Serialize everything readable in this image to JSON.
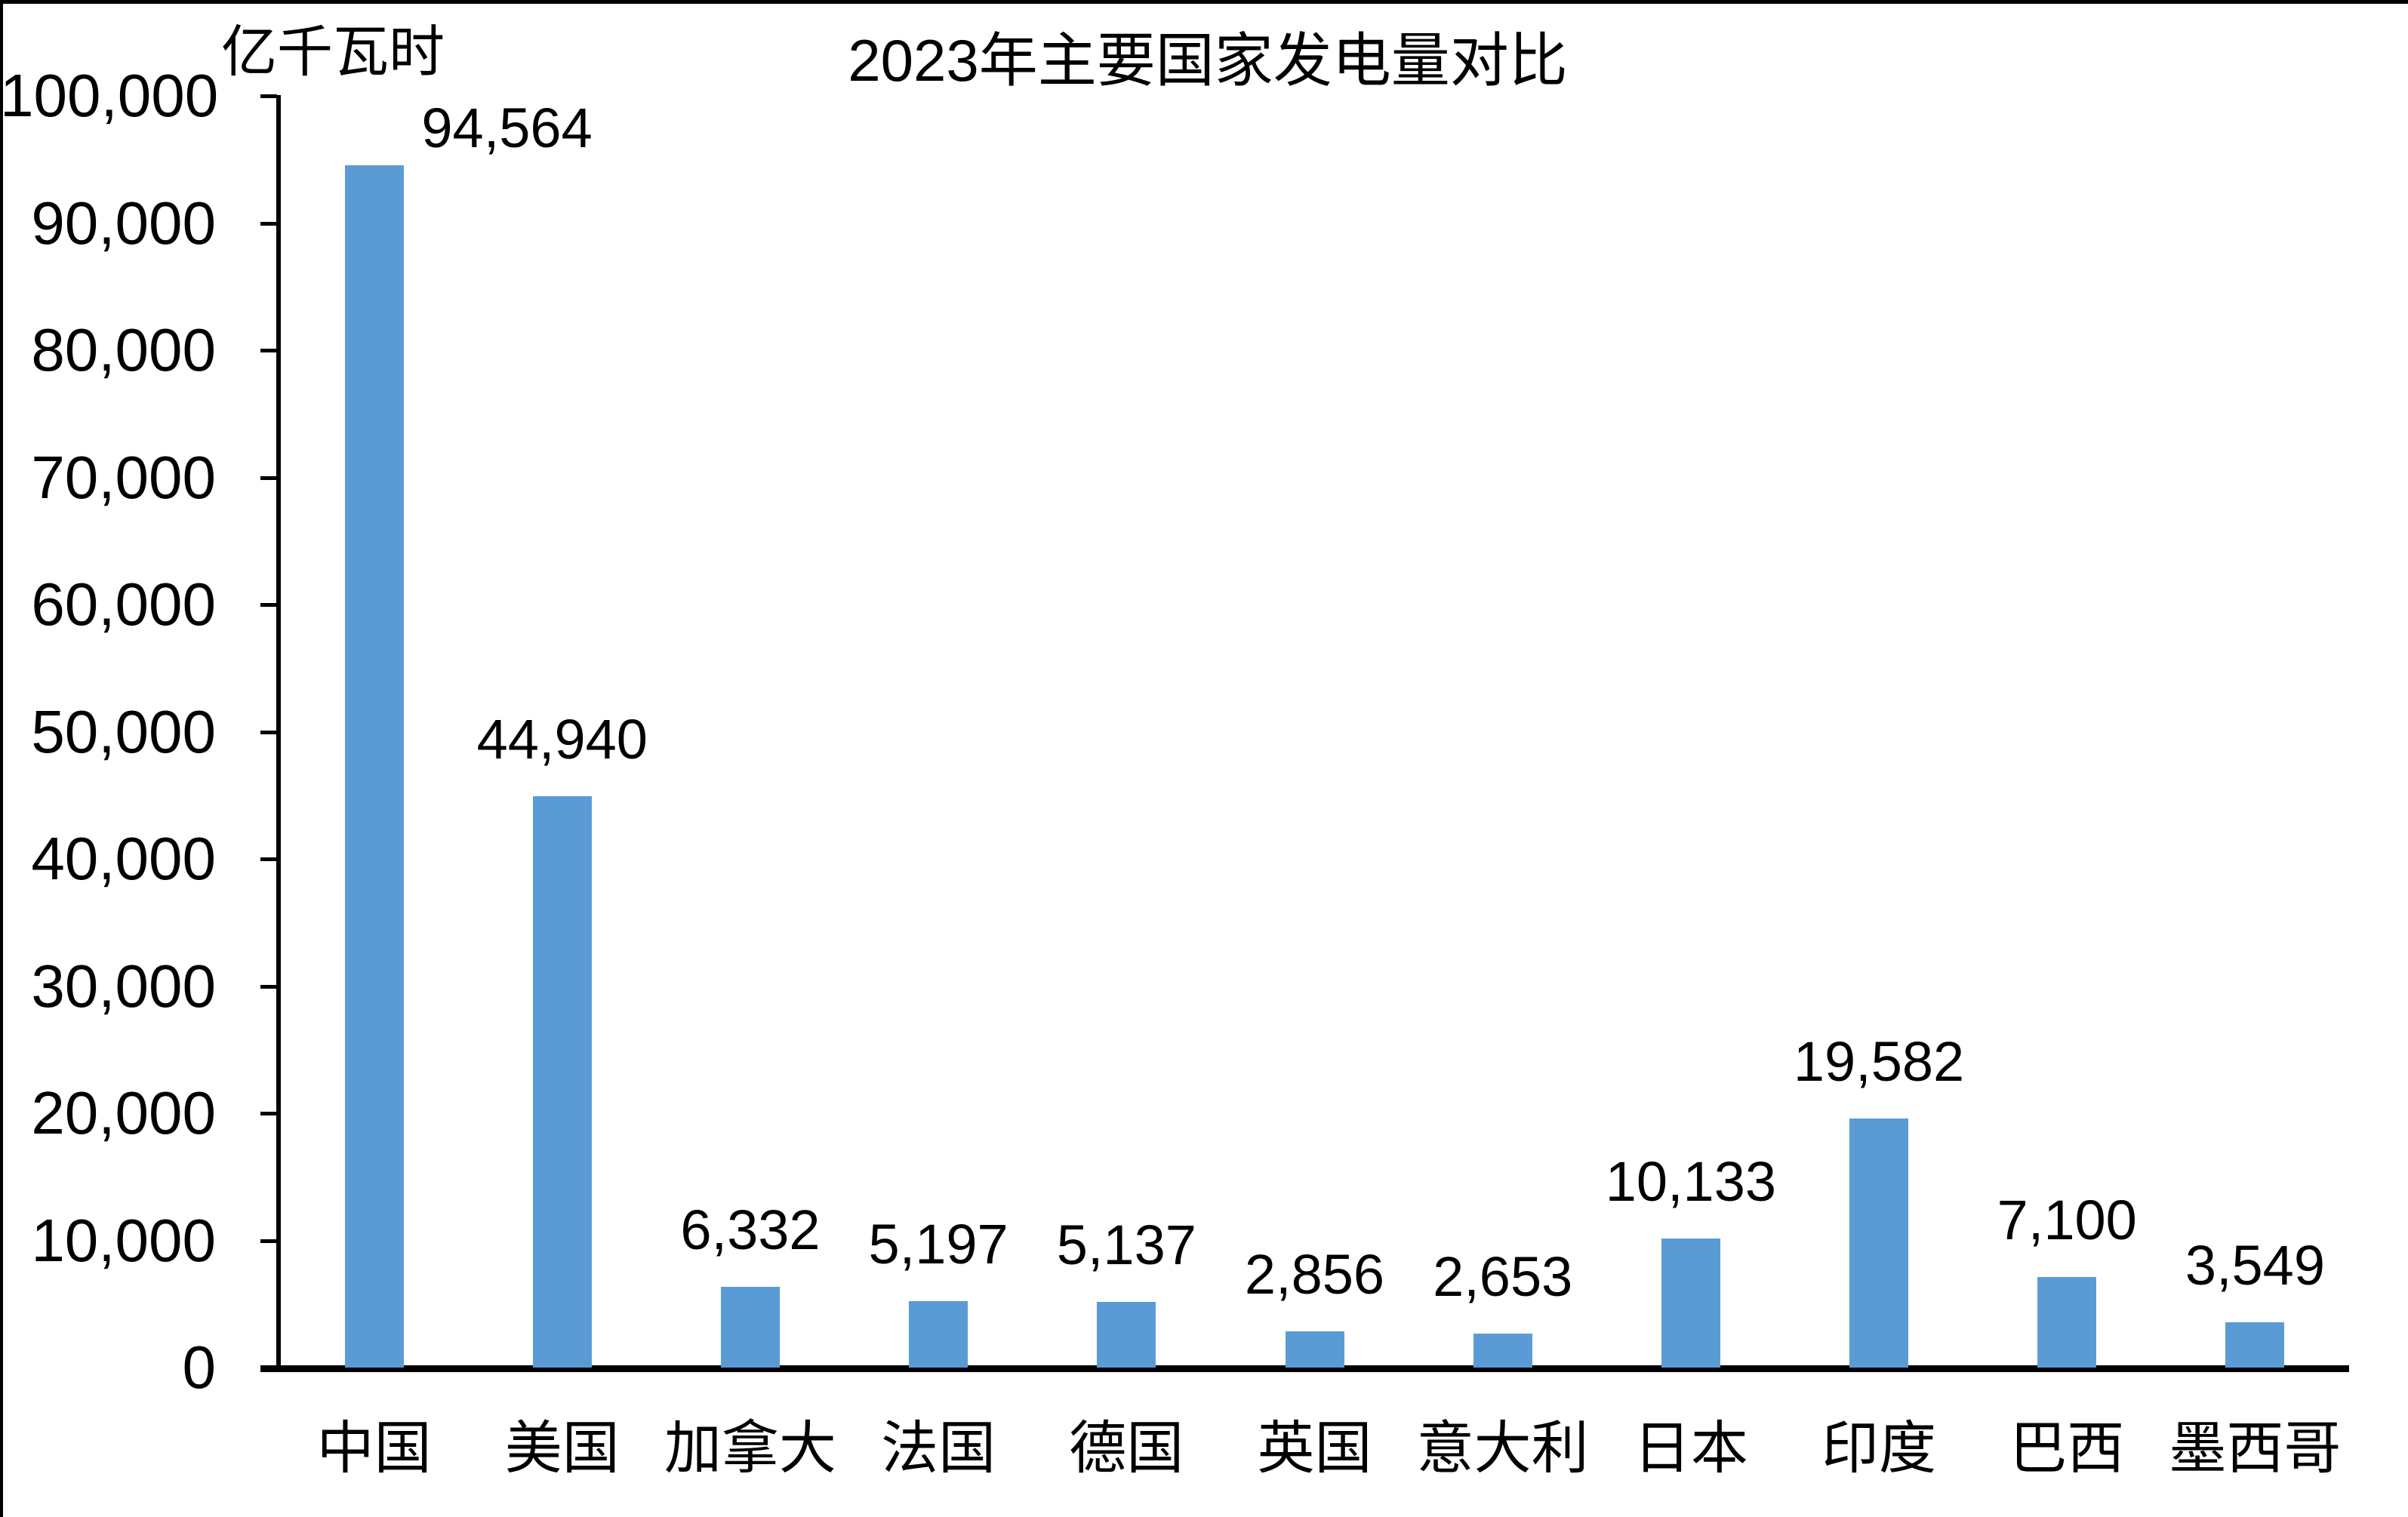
{
  "chart_data": {
    "type": "bar",
    "title": "2023年主要国家发电量对比",
    "unit_label": "亿千瓦时",
    "ylabel": "亿千瓦时",
    "xlabel": "",
    "categories": [
      "中国",
      "美国",
      "加拿大",
      "法国",
      "德国",
      "英国",
      "意大利",
      "日本",
      "印度",
      "巴西",
      "墨西哥"
    ],
    "values": [
      94564,
      44940,
      6332,
      5197,
      5137,
      2856,
      2653,
      10133,
      19582,
      7100,
      3549
    ],
    "value_labels": [
      "94,564",
      "44,940",
      "6,332",
      "5,197",
      "5,137",
      "2,856",
      "2,653",
      "10,133",
      "19,582",
      "7,100",
      "3,549"
    ],
    "ylim": [
      0,
      100000
    ],
    "ytick_interval": 10000,
    "ytick_labels": [
      "0",
      "10,000",
      "20,000",
      "30,000",
      "40,000",
      "50,000",
      "60,000",
      "70,000",
      "80,000",
      "90,000",
      "100,000"
    ],
    "grid": false,
    "legend": "none",
    "bar_color": "#5B9BD5",
    "axis_color": "#000000",
    "text_color": "#000000"
  }
}
